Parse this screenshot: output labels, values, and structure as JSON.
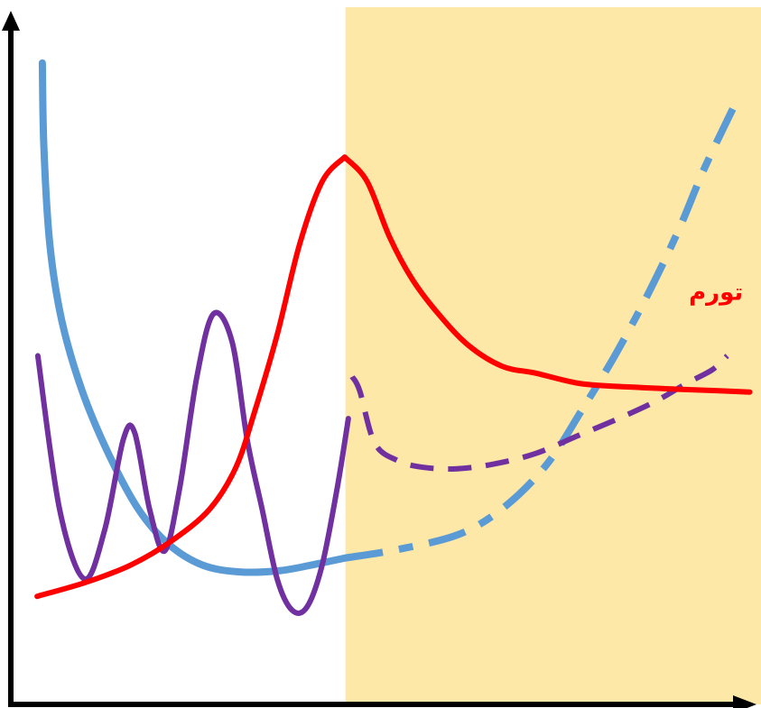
{
  "chart_data": {
    "type": "line",
    "title": "",
    "xlabel": "",
    "ylabel": "",
    "xlim": [
      0,
      100
    ],
    "ylim": [
      0,
      100
    ],
    "grid": false,
    "shaded_region": {
      "x_start": 44.6,
      "x_end": 100,
      "color": "#fde8a8"
    },
    "series": [
      {
        "key": "blue",
        "color": "#5b9bd5",
        "past": [
          [
            4.2,
            92
          ],
          [
            4.4,
            80
          ],
          [
            5.2,
            66
          ],
          [
            6.8,
            55
          ],
          [
            9.5,
            45
          ],
          [
            13.0,
            36
          ],
          [
            17.0,
            28
          ],
          [
            21.0,
            23
          ],
          [
            25.5,
            20
          ],
          [
            30.5,
            19
          ],
          [
            36.0,
            19.2
          ],
          [
            41.0,
            20.2
          ],
          [
            44.6,
            21
          ]
        ],
        "forecast": [
          [
            44.6,
            21
          ],
          [
            52.0,
            22.3
          ],
          [
            60.0,
            24.5
          ],
          [
            66.0,
            28.5
          ],
          [
            71.5,
            34.5
          ],
          [
            76.0,
            42
          ],
          [
            80.5,
            50
          ],
          [
            85.0,
            59
          ],
          [
            89.0,
            68
          ],
          [
            92.5,
            77
          ],
          [
            96.5,
            86
          ]
        ]
      },
      {
        "key": "red",
        "name": "تورم",
        "color": "#ff0000",
        "past": [
          [
            3.5,
            15.5
          ],
          [
            10.0,
            17.5
          ],
          [
            16.0,
            20
          ],
          [
            21.5,
            23.5
          ],
          [
            26.5,
            28
          ],
          [
            30.0,
            34
          ],
          [
            32.5,
            42
          ],
          [
            35.5,
            53
          ],
          [
            38.5,
            66
          ],
          [
            41.5,
            75
          ],
          [
            44.5,
            78.5
          ]
        ],
        "forecast": [
          [
            44.5,
            78.5
          ],
          [
            47.5,
            75
          ],
          [
            50.5,
            67
          ],
          [
            53.5,
            61
          ],
          [
            57.0,
            56
          ],
          [
            61.0,
            51.5
          ],
          [
            65.5,
            48.5
          ],
          [
            70.0,
            47.5
          ],
          [
            76.0,
            46
          ],
          [
            83.0,
            45.5
          ],
          [
            89.0,
            45.2
          ],
          [
            94.0,
            45
          ],
          [
            98.5,
            44.8
          ]
        ]
      },
      {
        "key": "purple",
        "color": "#7030a0",
        "past": [
          [
            3.6,
            50
          ],
          [
            6.5,
            28
          ],
          [
            9.8,
            18
          ],
          [
            12.5,
            25
          ],
          [
            15.0,
            38
          ],
          [
            16.5,
            39
          ],
          [
            18.5,
            28
          ],
          [
            20.5,
            22
          ],
          [
            22.5,
            31
          ],
          [
            24.8,
            47
          ],
          [
            27.0,
            56
          ],
          [
            29.5,
            52
          ],
          [
            31.5,
            38
          ],
          [
            33.5,
            28
          ],
          [
            35.5,
            18
          ],
          [
            37.5,
            13.5
          ],
          [
            39.5,
            14
          ],
          [
            41.5,
            20
          ],
          [
            43.5,
            31
          ],
          [
            45.0,
            41
          ]
        ],
        "forecast": [
          [
            45.5,
            47
          ],
          [
            46.5,
            45
          ],
          [
            48.5,
            37.5
          ],
          [
            51.5,
            35
          ],
          [
            55.0,
            34
          ],
          [
            59.5,
            33.8
          ],
          [
            64.5,
            34.5
          ],
          [
            70.0,
            36
          ],
          [
            75.5,
            38.5
          ],
          [
            81.0,
            41
          ],
          [
            86.0,
            43.5
          ],
          [
            90.0,
            46
          ],
          [
            93.5,
            48
          ],
          [
            95.5,
            50
          ]
        ]
      }
    ],
    "labels": [
      {
        "series": "red",
        "text": "تورم",
        "x": 94.0,
        "y": 58,
        "color": "#ff0000"
      }
    ]
  }
}
